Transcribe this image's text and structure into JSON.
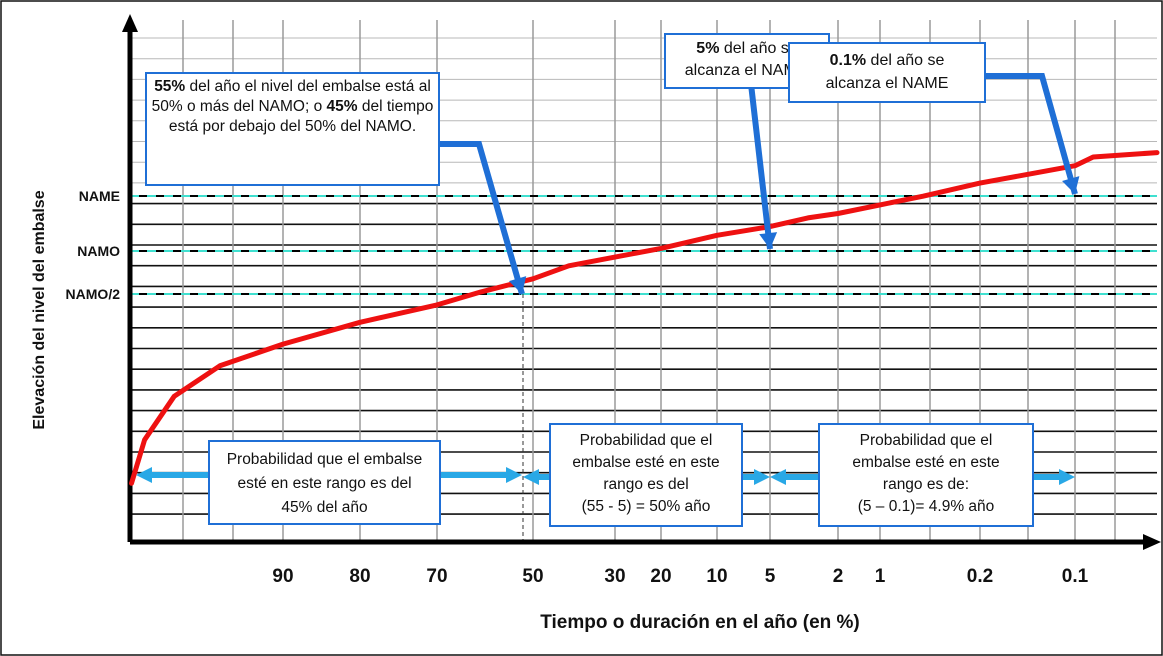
{
  "chart_data": {
    "type": "line",
    "xlabel": "Tiempo o duración en el año  (en %)",
    "ylabel": "Elevación del nivel del embalse",
    "x_scale": "probability",
    "x_ticks": [
      "90",
      "80",
      "70",
      "50",
      "30",
      "20",
      "10",
      "5",
      "2",
      "1",
      "0.2",
      "0.1"
    ],
    "y_levels": [
      {
        "label": "NAME"
      },
      {
        "label": "NAMO"
      },
      {
        "label": "NAMO/2"
      }
    ],
    "series": [
      {
        "color": "#ee1111",
        "x": [
          99.9,
          99,
          97,
          94,
          90,
          80,
          70,
          60,
          50,
          40,
          30,
          20,
          10,
          5,
          3,
          2,
          1,
          0.5,
          0.2,
          0.1,
          0.06,
          0.01
        ],
        "y": [
          0.05,
          0.15,
          0.25,
          0.32,
          0.37,
          0.42,
          0.46,
          0.49,
          0.52,
          0.55,
          0.57,
          0.59,
          0.62,
          0.64,
          0.66,
          0.67,
          0.69,
          0.71,
          0.74,
          0.78,
          0.8,
          0.81
        ]
      }
    ],
    "grid": true,
    "colors": {
      "curve": "#ee1111",
      "callout_border": "#1f6fd6",
      "arrow": "#1f6fd6",
      "range_arrow": "#29a8e6",
      "level_line": "#40e0d0"
    }
  },
  "callouts": {
    "c55": {
      "pct": "55%",
      "t1": " del año el nivel del embalse está al 50% o más del NAMO; o ",
      "pct2": "45%",
      "t2": " del tiempo está por debajo del 50% del NAMO."
    },
    "c5": {
      "pct": "5%",
      "t1": " del año se alcanza el NAMO"
    },
    "c01": {
      "pct": "0.1%",
      "t1": " del año se alcanza el NAME"
    },
    "r45": "Probabilidad que el embalse esté en este rango es del 45% del año",
    "r50a": "Probabilidad que el embalse esté en este rango es del",
    "r50b": "(55 - 5) = 50% año",
    "r49a": "Probabilidad que el embalse esté en este rango es de:",
    "r49b": "(5 – 0.1)= 4.9% año"
  }
}
